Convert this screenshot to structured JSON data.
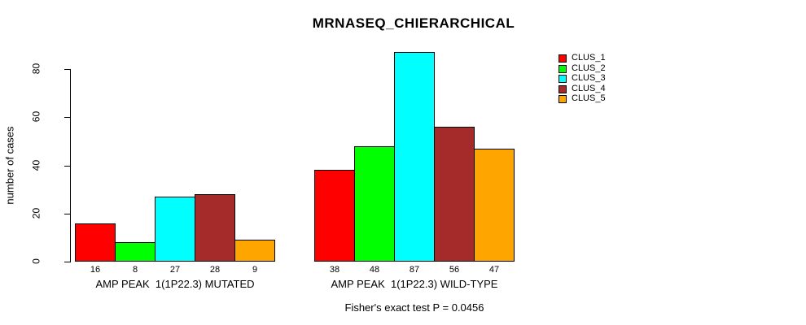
{
  "chart_data": {
    "type": "bar",
    "title": "MRNASEQ_CHIERARCHICAL",
    "ylabel": "number of cases",
    "xlabel": "",
    "yticks": [
      0,
      20,
      40,
      60,
      80
    ],
    "ylim": [
      0,
      88
    ],
    "grid": false,
    "legend_position": "top-right-outside",
    "categories": [
      "AMP PEAK  1(1P22.3) MUTATED",
      "AMP PEAK  1(1P22.3) WILD-TYPE"
    ],
    "series": [
      {
        "name": "CLUS_1",
        "color": "#FF0000",
        "values": [
          16,
          38
        ]
      },
      {
        "name": "CLUS_2",
        "color": "#00FF00",
        "values": [
          8,
          48
        ]
      },
      {
        "name": "CLUS_3",
        "color": "#00FFFF",
        "values": [
          27,
          87
        ]
      },
      {
        "name": "CLUS_4",
        "color": "#A52A2A",
        "values": [
          28,
          56
        ]
      },
      {
        "name": "CLUS_5",
        "color": "#FFA500",
        "values": [
          9,
          47
        ]
      }
    ],
    "bar_value_labels": true,
    "annotation": "Fisher's exact test P = 0.0456"
  }
}
